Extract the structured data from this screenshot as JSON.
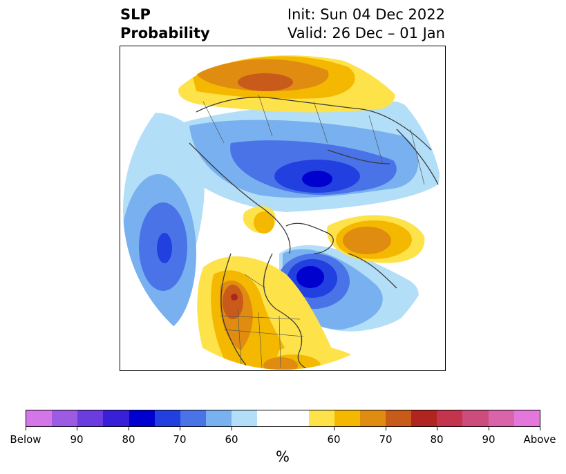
{
  "title": {
    "left_line1": "SLP",
    "left_line2": "Probability",
    "right_line1": "Init: Sun 04 Dec 2022",
    "right_line2": "Valid: 26 Dec – 01 Jan"
  },
  "colorbar": {
    "unit": "%",
    "colors": [
      "#d475e8",
      "#9d5ae3",
      "#6b3de0",
      "#3a1fd8",
      "#0000cf",
      "#2140df",
      "#4a73e8",
      "#78b0f0",
      "#b3def8",
      "#ffffff",
      "#ffffff",
      "#fee24a",
      "#f5b800",
      "#e08c10",
      "#c85a1a",
      "#b02520",
      "#c4344c",
      "#cc4c7e",
      "#d964aa",
      "#e477dc"
    ],
    "tick_labels": [
      "Below",
      "90",
      "80",
      "70",
      "60",
      "60",
      "70",
      "80",
      "90",
      "Above"
    ]
  },
  "map": {
    "projection": "north-polar-stereographic",
    "field": "sea-level-pressure-probability",
    "legend_colors": {
      "above_60": "#fee24a",
      "above_65": "#f5b800",
      "above_70": "#e08c10",
      "above_75": "#c85a1a",
      "above_80": "#b02520",
      "below_60": "#b3def8",
      "below_65": "#78b0f0",
      "below_70": "#4a73e8",
      "below_75": "#2140df",
      "below_80": "#0000cf"
    }
  }
}
